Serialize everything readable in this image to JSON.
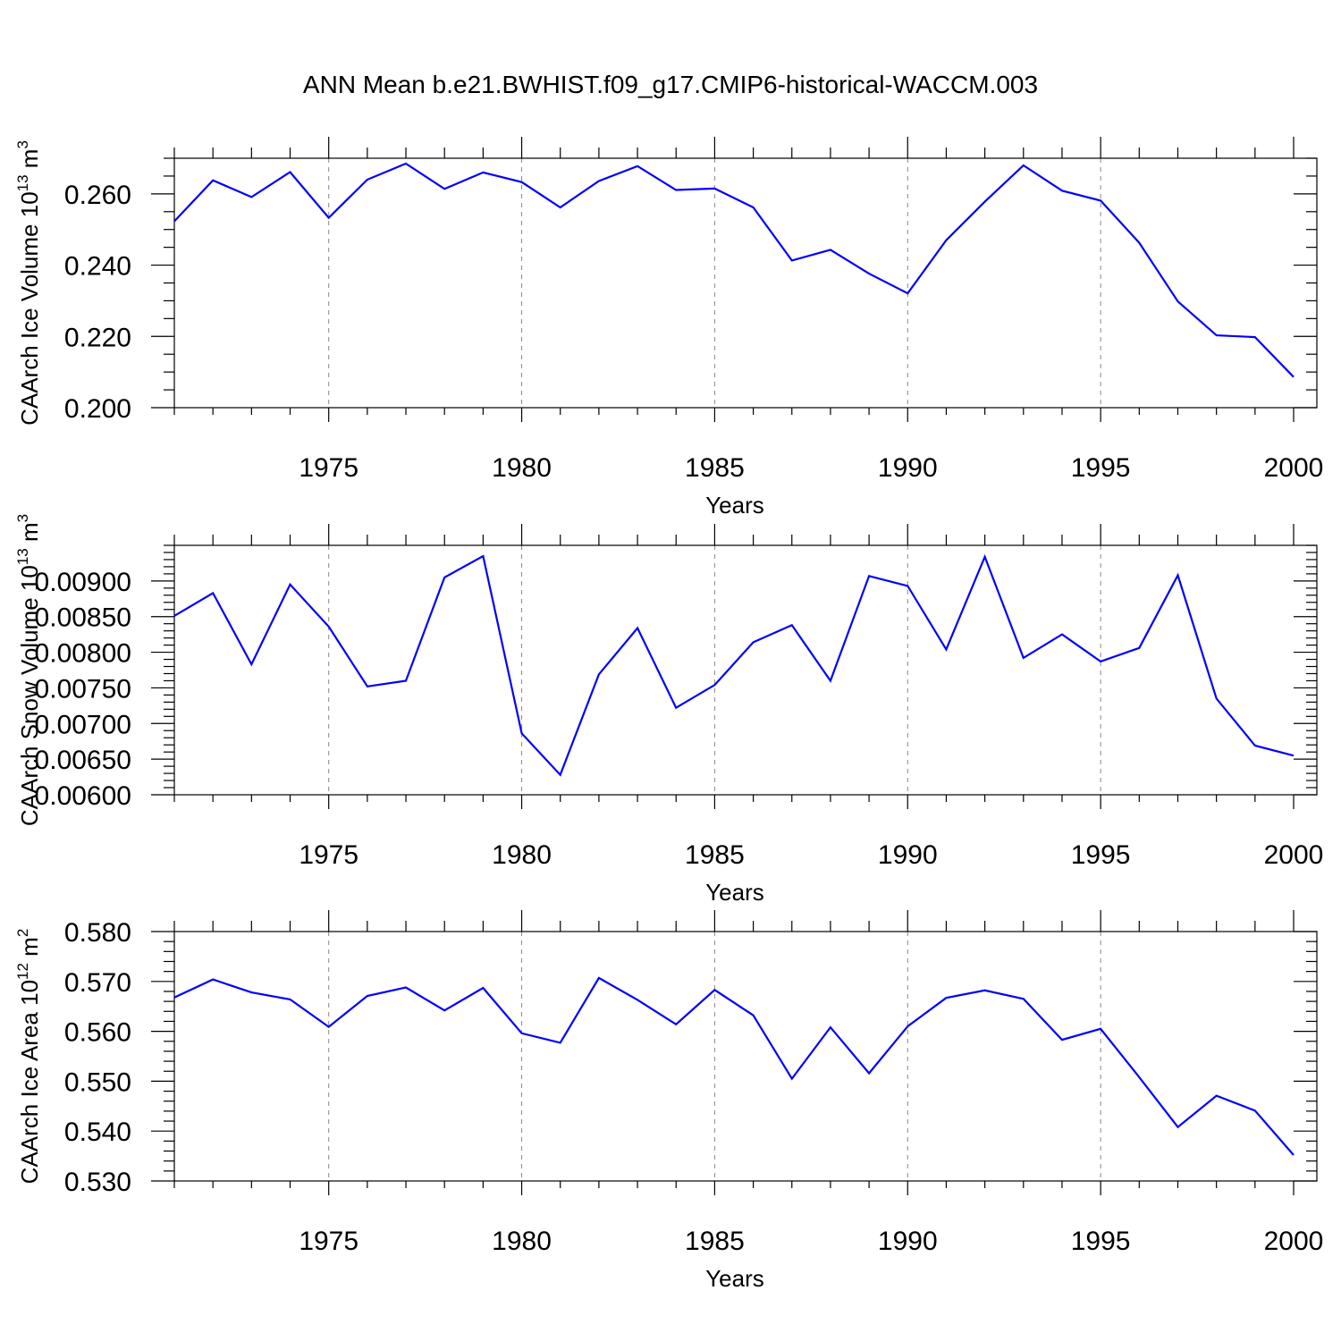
{
  "title": "ANN Mean b.e21.BWHIST.f09_g17.CMIP6-historical-WACCM.003",
  "colors": {
    "line": "#0000ff",
    "grid": "#888888",
    "axis": "#000000"
  },
  "chart_data": [
    {
      "type": "line",
      "title": "ANN Mean b.e21.BWHIST.f09_g17.CMIP6-historical-WACCM.003",
      "xlabel": "Years",
      "ylabel": {
        "text": "CAArch Ice Volume 10",
        "sup": "13",
        "unit": " m",
        "unit_sup": "3"
      },
      "xlim": [
        1971,
        2000
      ],
      "ylim": [
        0.2,
        0.27
      ],
      "yticks": [
        0.2,
        0.22,
        0.24,
        0.26
      ],
      "ytick_labels": [
        "0.200",
        "0.220",
        "0.240",
        "0.260"
      ],
      "yminor_step": 0.005,
      "xticks": [
        1975,
        1980,
        1985,
        1990,
        1995,
        2000
      ],
      "xtick_labels": [
        "1975",
        "1980",
        "1985",
        "1990",
        "1995",
        "2000"
      ],
      "grid": "x-dashed",
      "x": [
        1971,
        1972,
        1973,
        1974,
        1975,
        1976,
        1977,
        1978,
        1979,
        1980,
        1981,
        1982,
        1983,
        1984,
        1985,
        1986,
        1987,
        1988,
        1989,
        1990,
        1991,
        1992,
        1993,
        1994,
        1995,
        1996,
        1997,
        1998,
        1999,
        2000
      ],
      "series": [
        {
          "name": "CAArch Ice Volume",
          "values": [
            0.2523,
            0.2638,
            0.2591,
            0.2661,
            0.2533,
            0.264,
            0.2685,
            0.2614,
            0.266,
            0.2633,
            0.2562,
            0.2636,
            0.2678,
            0.2611,
            0.2615,
            0.2562,
            0.2413,
            0.2443,
            0.2376,
            0.2321,
            0.247,
            0.2578,
            0.268,
            0.2609,
            0.2581,
            0.2463,
            0.2298,
            0.2203,
            0.2198,
            0.2086
          ]
        }
      ]
    },
    {
      "type": "line",
      "xlabel": "Years",
      "ylabel": {
        "text": "CAArch Snow Volume 10",
        "sup": "13",
        "unit": " m",
        "unit_sup": "3"
      },
      "xlim": [
        1971,
        2000
      ],
      "ylim": [
        0.006,
        0.0095
      ],
      "yticks": [
        0.006,
        0.0065,
        0.007,
        0.0075,
        0.008,
        0.0085,
        0.009
      ],
      "ytick_labels": [
        "0.00600",
        "0.00650",
        "0.00700",
        "0.00750",
        "0.00800",
        "0.00850",
        "0.00900"
      ],
      "yminor_step": 0.0001,
      "xticks": [
        1975,
        1980,
        1985,
        1990,
        1995,
        2000
      ],
      "xtick_labels": [
        "1975",
        "1980",
        "1985",
        "1990",
        "1995",
        "2000"
      ],
      "grid": "x-dashed",
      "x": [
        1971,
        1972,
        1973,
        1974,
        1975,
        1976,
        1977,
        1978,
        1979,
        1980,
        1981,
        1982,
        1983,
        1984,
        1985,
        1986,
        1987,
        1988,
        1989,
        1990,
        1991,
        1992,
        1993,
        1994,
        1995,
        1996,
        1997,
        1998,
        1999,
        2000
      ],
      "series": [
        {
          "name": "CAArch Snow Volume",
          "values": [
            0.00851,
            0.00883,
            0.00783,
            0.00895,
            0.00836,
            0.00752,
            0.0076,
            0.00905,
            0.00935,
            0.00686,
            0.00628,
            0.00769,
            0.00834,
            0.00722,
            0.00754,
            0.00814,
            0.00838,
            0.0076,
            0.00907,
            0.00893,
            0.00804,
            0.00934,
            0.00792,
            0.00825,
            0.00787,
            0.00806,
            0.00908,
            0.00735,
            0.00669,
            0.00655
          ]
        }
      ]
    },
    {
      "type": "line",
      "xlabel": "Years",
      "ylabel": {
        "text": "CAArch Ice Area 10",
        "sup": "12",
        "unit": " m",
        "unit_sup": "2"
      },
      "xlim": [
        1971,
        2000
      ],
      "ylim": [
        0.53,
        0.58
      ],
      "yticks": [
        0.53,
        0.54,
        0.55,
        0.56,
        0.57,
        0.58
      ],
      "ytick_labels": [
        "0.530",
        "0.540",
        "0.550",
        "0.560",
        "0.570",
        "0.580"
      ],
      "yminor_step": 0.002,
      "xticks": [
        1975,
        1980,
        1985,
        1990,
        1995,
        2000
      ],
      "xtick_labels": [
        "1975",
        "1980",
        "1985",
        "1990",
        "1995",
        "2000"
      ],
      "grid": "x-dashed",
      "x": [
        1971,
        1972,
        1973,
        1974,
        1975,
        1976,
        1977,
        1978,
        1979,
        1980,
        1981,
        1982,
        1983,
        1984,
        1985,
        1986,
        1987,
        1988,
        1989,
        1990,
        1991,
        1992,
        1993,
        1994,
        1995,
        1996,
        1997,
        1998,
        1999,
        2000
      ],
      "series": [
        {
          "name": "CAArch Ice Area",
          "values": [
            0.5668,
            0.5704,
            0.5678,
            0.5664,
            0.5609,
            0.5671,
            0.5688,
            0.5642,
            0.5687,
            0.5596,
            0.5577,
            0.5707,
            0.5663,
            0.5614,
            0.5683,
            0.5632,
            0.5505,
            0.5608,
            0.5516,
            0.561,
            0.5667,
            0.5682,
            0.5665,
            0.5583,
            0.5605,
            0.5508,
            0.5408,
            0.5471,
            0.5441,
            0.5352
          ]
        }
      ]
    }
  ]
}
